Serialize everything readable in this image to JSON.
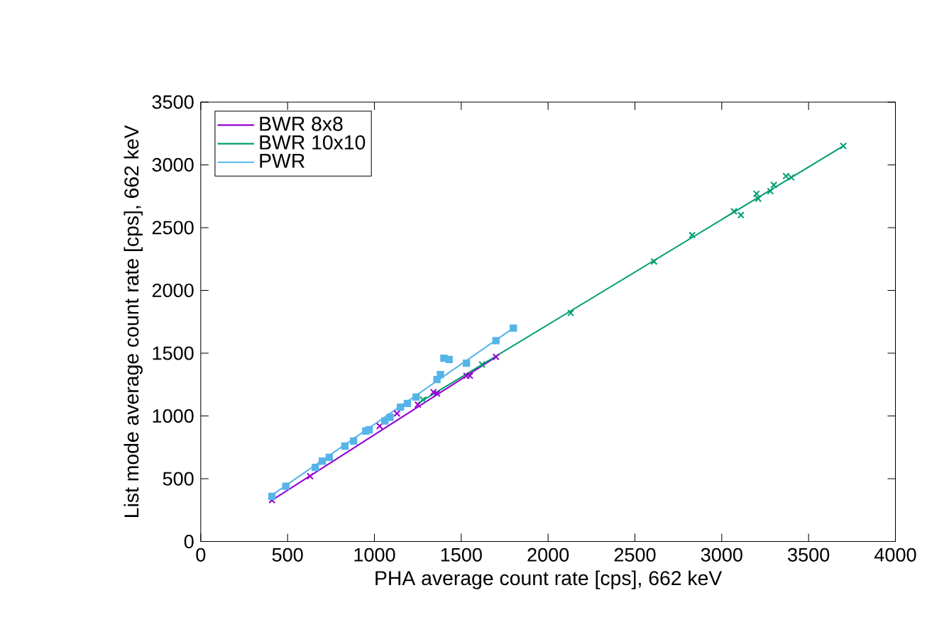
{
  "chart_data": {
    "type": "scatter",
    "xlabel": "PHA average count rate [cps], 662 keV",
    "ylabel": "List mode average count rate [cps], 662 keV",
    "xlim": [
      0,
      4000
    ],
    "ylim": [
      0,
      3500
    ],
    "xticks": [
      0,
      500,
      1000,
      1500,
      2000,
      2500,
      3000,
      3500,
      4000
    ],
    "yticks": [
      0,
      500,
      1000,
      1500,
      2000,
      2500,
      3000,
      3500
    ],
    "legend": "top left",
    "grid": false,
    "series": [
      {
        "name": "BWR 8x8",
        "color": "#9400d3",
        "marker": "cross",
        "x": [
          410,
          630,
          1030,
          1130,
          1250,
          1340,
          1360,
          1530,
          1550,
          1700
        ],
        "values": [
          330,
          520,
          920,
          1020,
          1090,
          1190,
          1180,
          1320,
          1320,
          1470
        ]
      },
      {
        "name": "BWR 10x10",
        "color": "#009e73",
        "marker": "cross",
        "x": [
          1280,
          1620,
          2130,
          2610,
          2830,
          3070,
          3110,
          3200,
          3210,
          3280,
          3300,
          3370,
          3400,
          3700
        ],
        "values": [
          1130,
          1410,
          1820,
          2230,
          2440,
          2630,
          2600,
          2770,
          2730,
          2790,
          2840,
          2910,
          2900,
          3150
        ]
      },
      {
        "name": "PWR",
        "color": "#56b4e9",
        "marker": "square",
        "x": [
          410,
          490,
          660,
          700,
          740,
          830,
          880,
          950,
          970,
          1060,
          1090,
          1150,
          1190,
          1240,
          1360,
          1380,
          1400,
          1430,
          1530,
          1700,
          1800
        ],
        "values": [
          360,
          440,
          590,
          640,
          670,
          760,
          800,
          880,
          890,
          960,
          990,
          1070,
          1100,
          1150,
          1290,
          1330,
          1460,
          1450,
          1420,
          1600,
          1700
        ]
      },
      {
        "type": "line",
        "color": "#9400d3",
        "marker": "none",
        "x": [
          400,
          1700
        ],
        "values": [
          320,
          1470
        ]
      },
      {
        "type": "line",
        "color": "#009e73",
        "marker": "none",
        "x": [
          1250,
          3700
        ],
        "values": [
          1100,
          3150
        ]
      },
      {
        "type": "line",
        "color": "#56b4e9",
        "marker": "none",
        "x": [
          400,
          1800
        ],
        "values": [
          360,
          1700
        ]
      }
    ]
  }
}
